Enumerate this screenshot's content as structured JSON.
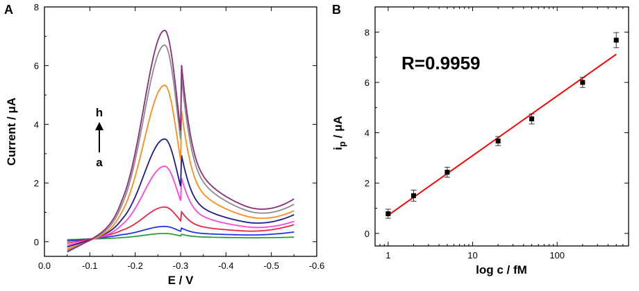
{
  "chart_data": [
    {
      "panel": "A",
      "type": "line",
      "xlabel": "E / V",
      "ylabel": "Current / μA",
      "xlim": [
        0.0,
        -0.6
      ],
      "ylim": [
        -0.5,
        8
      ],
      "xticks": [
        0.0,
        -0.1,
        -0.2,
        -0.3,
        -0.4,
        -0.5,
        -0.6
      ],
      "xtick_labels": [
        "0.0",
        "-0.1",
        "-0.2",
        "-0.3",
        "-0.4",
        "-0.5",
        "-0.6"
      ],
      "yticks": [
        0,
        2,
        4,
        6,
        8
      ],
      "ytick_labels": [
        "0",
        "2",
        "4",
        "6",
        "8"
      ],
      "arrow_top_label": "h",
      "arrow_bottom_label": "a",
      "peak_potential": -0.265,
      "series": [
        {
          "name": "a",
          "color": "#2a9d3a",
          "peak": 0.28,
          "start": 0.07,
          "min": 0.12,
          "end": 0.15
        },
        {
          "name": "b",
          "color": "#2233dd",
          "peak": 0.52,
          "start": 0.02,
          "min": 0.2,
          "end": 0.32
        },
        {
          "name": "c",
          "color": "#ee2244",
          "peak": 1.18,
          "start": -0.05,
          "min": 0.28,
          "end": 0.55
        },
        {
          "name": "d",
          "color": "#ff44dd",
          "peak": 2.57,
          "start": -0.12,
          "min": 0.3,
          "end": 0.62
        },
        {
          "name": "e",
          "color": "#1a1a8c",
          "peak": 3.5,
          "start": -0.18,
          "min": 0.38,
          "end": 0.82
        },
        {
          "name": "f",
          "color": "#ff8c1a",
          "peak": 5.33,
          "start": -0.25,
          "min": 0.42,
          "end": 0.9
        },
        {
          "name": "g",
          "color": "#8a8a8a",
          "peak": 6.7,
          "start": -0.3,
          "min": 0.5,
          "end": 1.08
        },
        {
          "name": "h",
          "color": "#8b2a7a",
          "peak": 7.2,
          "start": -0.35,
          "min": 0.6,
          "end": 1.25
        }
      ]
    },
    {
      "panel": "B",
      "type": "scatter",
      "xlabel": "log c / fM",
      "ylabel_main": "i",
      "ylabel_sub": "p",
      "ylabel_rest": " / μA",
      "xscale": "log",
      "xlim": [
        0.7,
        700
      ],
      "ylim": [
        -0.5,
        9
      ],
      "xticks": [
        1,
        10,
        100
      ],
      "xtick_labels": [
        "1",
        "10",
        "100"
      ],
      "yticks": [
        0,
        2,
        4,
        6,
        8
      ],
      "ytick_labels": [
        "0",
        "2",
        "4",
        "6",
        "8"
      ],
      "annotation": "R=0.9959",
      "points": [
        {
          "x": 1,
          "y": 0.78,
          "err": 0.18
        },
        {
          "x": 2,
          "y": 1.5,
          "err": 0.22
        },
        {
          "x": 5,
          "y": 2.43,
          "err": 0.2
        },
        {
          "x": 20,
          "y": 3.67,
          "err": 0.18
        },
        {
          "x": 50,
          "y": 4.55,
          "err": 0.2
        },
        {
          "x": 200,
          "y": 6.0,
          "err": 0.2
        },
        {
          "x": 500,
          "y": 7.68,
          "err": 0.3
        }
      ],
      "fit_line": {
        "x": [
          1,
          500
        ],
        "y": [
          0.72,
          7.12
        ],
        "color": "#ff0000"
      }
    }
  ],
  "colors": {
    "axis": "#000000",
    "fit": "#ff0000",
    "marker": "#000000"
  }
}
